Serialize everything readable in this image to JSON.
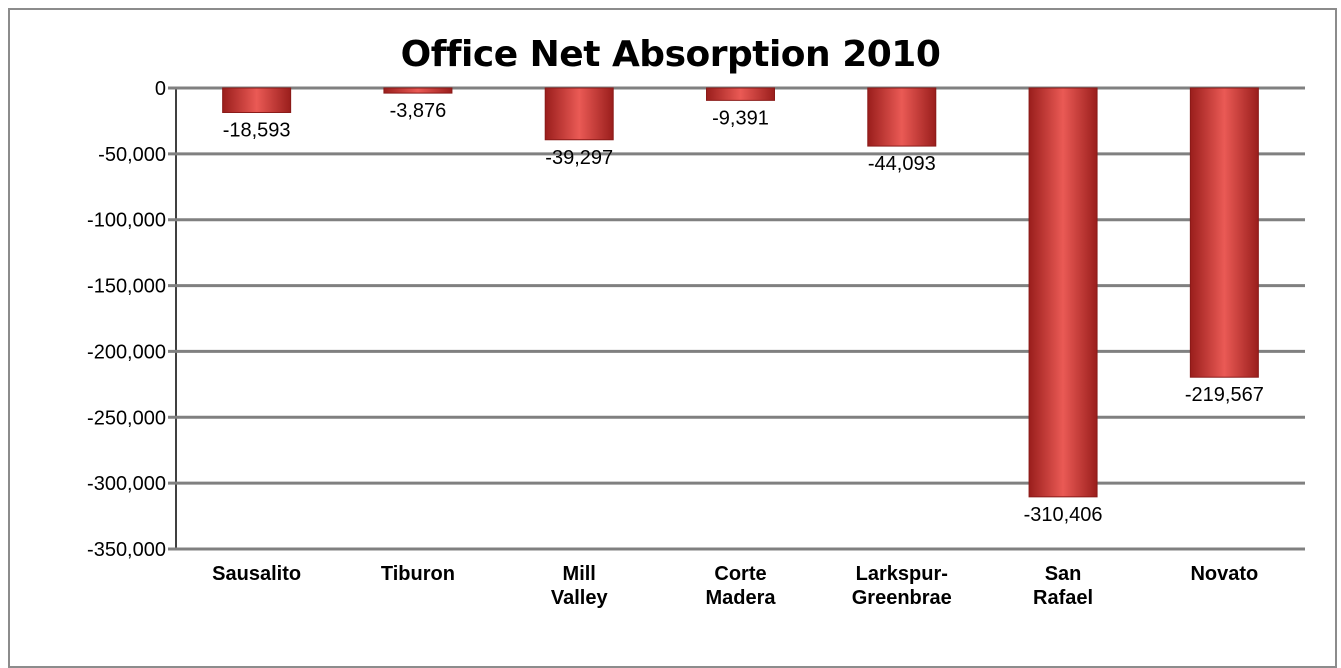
{
  "chart_data": {
    "type": "bar",
    "title": "Office Net Absorption 2010",
    "categories": [
      [
        "Sausalito"
      ],
      [
        "Tiburon"
      ],
      [
        "Mill",
        "Valley"
      ],
      [
        "Corte",
        "Madera"
      ],
      [
        "Larkspur-",
        "Greenbrae"
      ],
      [
        "San",
        "Rafael"
      ],
      [
        "Novato"
      ]
    ],
    "values": [
      -18593,
      -3876,
      -39297,
      -9391,
      -44093,
      -310406,
      -219567
    ],
    "data_labels": [
      "-18,593",
      "-3,876",
      "-39,297",
      "-9,391",
      "-44,093",
      "-310,406",
      "-219,567"
    ],
    "ylim": [
      -350000,
      0
    ],
    "yticks": [
      0,
      -50000,
      -100000,
      -150000,
      -200000,
      -250000,
      -300000,
      -350000
    ],
    "ytick_labels": [
      "0",
      "-50,000",
      "-100,000",
      "-150,000",
      "-200,000",
      "-250,000",
      "-300,000",
      "-350,000"
    ],
    "xlabel": "",
    "ylabel": "",
    "grid": true,
    "legend": "none",
    "bar_color": "#d6403c",
    "bar_color_light": "#ea5a55",
    "bar_color_dark": "#9a1e1c",
    "gridline_color": "#808080"
  }
}
